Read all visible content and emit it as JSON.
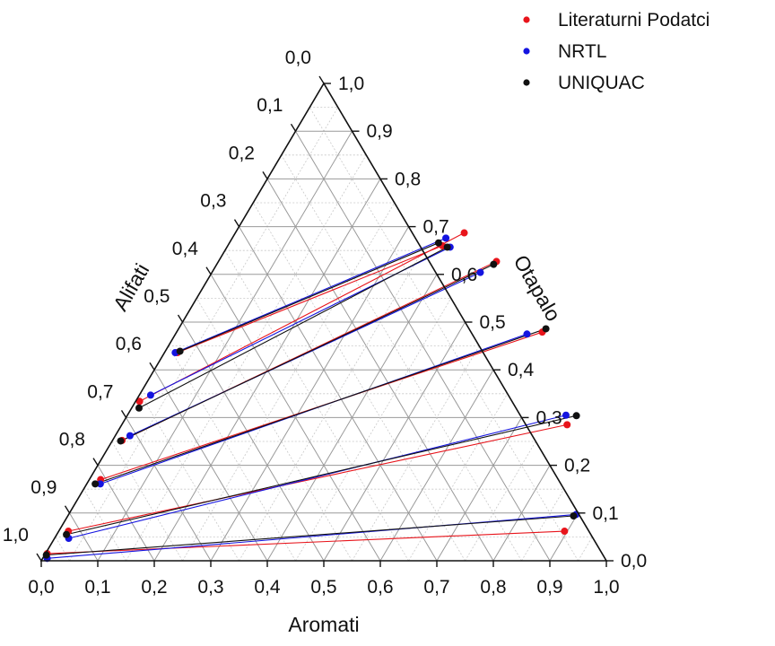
{
  "chart_data": {
    "type": "ternary-scatter",
    "axes": {
      "bottom": {
        "label": "Aromati",
        "ticks": [
          "0,0",
          "0,1",
          "0,2",
          "0,3",
          "0,4",
          "0,5",
          "0,6",
          "0,7",
          "0,8",
          "0,9",
          "1,0"
        ]
      },
      "right": {
        "label": "Otapalo",
        "ticks": [
          "0,0",
          "0,1",
          "0,2",
          "0,3",
          "0,4",
          "0,5",
          "0,6",
          "0,7",
          "0,8",
          "0,9",
          "1,0"
        ]
      },
      "left": {
        "label": "Alifati",
        "ticks": [
          "0,0",
          "0,1",
          "0,2",
          "0,3",
          "0,4",
          "0,5",
          "0,6",
          "0,7",
          "0,8",
          "0,9",
          "1,0"
        ]
      },
      "range": [
        0,
        1
      ],
      "grid_step": 0.05,
      "grid": true
    },
    "legend_position": "top-right",
    "series": [
      {
        "name": "Literaturni Podatci",
        "color": "#e8141b",
        "tie_lines": [
          {
            "raffinate": [
              0.003,
              0.015
            ],
            "extract": [
              0.895,
              0.062
            ]
          },
          {
            "raffinate": [
              0.017,
              0.062
            ],
            "extract": [
              0.788,
              0.285
            ]
          },
          {
            "raffinate": [
              0.02,
              0.17
            ],
            "extract": [
              0.647,
              0.479
            ]
          },
          {
            "raffinate": [
              0.017,
              0.252
            ],
            "extract": [
              0.492,
              0.627
            ]
          },
          {
            "raffinate": [
              0.007,
              0.334
            ],
            "extract": [
              0.405,
              0.687
            ]
          },
          {
            "raffinate": [
              0.023,
              0.436
            ],
            "extract": [
              0.38,
              0.66
            ]
          }
        ]
      },
      {
        "name": "NRTL",
        "color": "#1414e0",
        "tie_lines": [
          {
            "raffinate": [
              0.008,
              0.005
            ],
            "extract": [
              0.898,
              0.097
            ]
          },
          {
            "raffinate": [
              0.025,
              0.047
            ],
            "extract": [
              0.776,
              0.305
            ]
          },
          {
            "raffinate": [
              0.024,
              0.161
            ],
            "extract": [
              0.622,
              0.475
            ]
          },
          {
            "raffinate": [
              0.026,
              0.262
            ],
            "extract": [
              0.475,
              0.604
            ]
          },
          {
            "raffinate": [
              0.02,
              0.347
            ],
            "extract": [
              0.395,
              0.657
            ]
          },
          {
            "raffinate": [
              0.019,
              0.436
            ],
            "extract": [
              0.378,
              0.676
            ]
          }
        ]
      },
      {
        "name": "UNIQUAC",
        "color": "#111111",
        "tie_lines": [
          {
            "raffinate": [
              0.003,
              0.012
            ],
            "extract": [
              0.895,
              0.094
            ]
          },
          {
            "raffinate": [
              0.017,
              0.055
            ],
            "extract": [
              0.795,
              0.304
            ]
          },
          {
            "raffinate": [
              0.015,
              0.161
            ],
            "extract": [
              0.65,
              0.486
            ]
          },
          {
            "raffinate": [
              0.015,
              0.251
            ],
            "extract": [
              0.49,
              0.621
            ]
          },
          {
            "raffinate": [
              0.013,
              0.32
            ],
            "extract": [
              0.39,
              0.657
            ]
          },
          {
            "raffinate": [
              0.026,
              0.439
            ],
            "extract": [
              0.37,
              0.666
            ]
          }
        ]
      }
    ]
  }
}
